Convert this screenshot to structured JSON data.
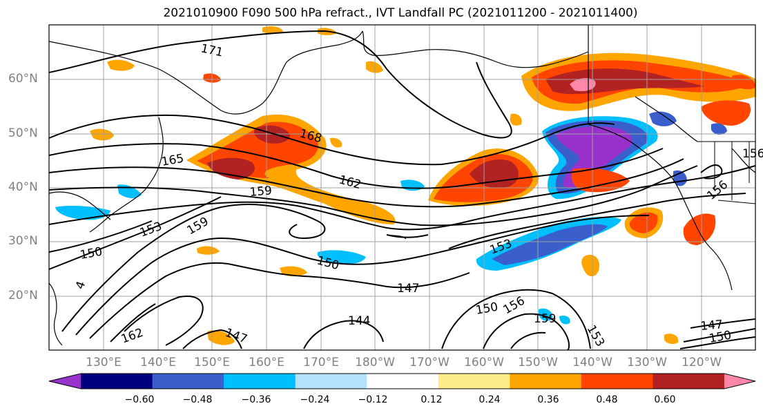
{
  "title": "2021010900 F090 500 hPa refract., IVT Landfall PC (2021011200 - 2021011400)",
  "map": {
    "projection": "equirectangular",
    "lon_range": [
      120,
      250
    ],
    "lat_range": [
      10,
      70
    ],
    "grid": true,
    "lat_labels": [
      "20°N",
      "30°N",
      "40°N",
      "50°N",
      "60°N"
    ],
    "lon_labels": [
      "130°E",
      "140°E",
      "150°E",
      "160°E",
      "170°E",
      "180°W",
      "170°W",
      "160°W",
      "150°W",
      "140°W",
      "130°W",
      "120°W"
    ],
    "contour_labels": [
      "171",
      "168",
      "165",
      "162",
      "159",
      "159",
      "156",
      "156",
      "153",
      "153",
      "150",
      "150",
      "150",
      "150",
      "147",
      "147",
      "147",
      "144",
      "156",
      "159",
      "153",
      "162",
      "4"
    ]
  },
  "colorbar": {
    "ticks": [
      "−0.60",
      "−0.48",
      "−0.36",
      "−0.24",
      "−0.12",
      "0.12",
      "0.24",
      "0.36",
      "0.48",
      "0.60"
    ],
    "colors": [
      "#9932cc",
      "#000080",
      "#3a5fcd",
      "#00bfff",
      "#b2e2ff",
      "#ffffff",
      "#ffec8b",
      "#ffa500",
      "#ff4500",
      "#b22222",
      "#ff88aa"
    ]
  }
}
